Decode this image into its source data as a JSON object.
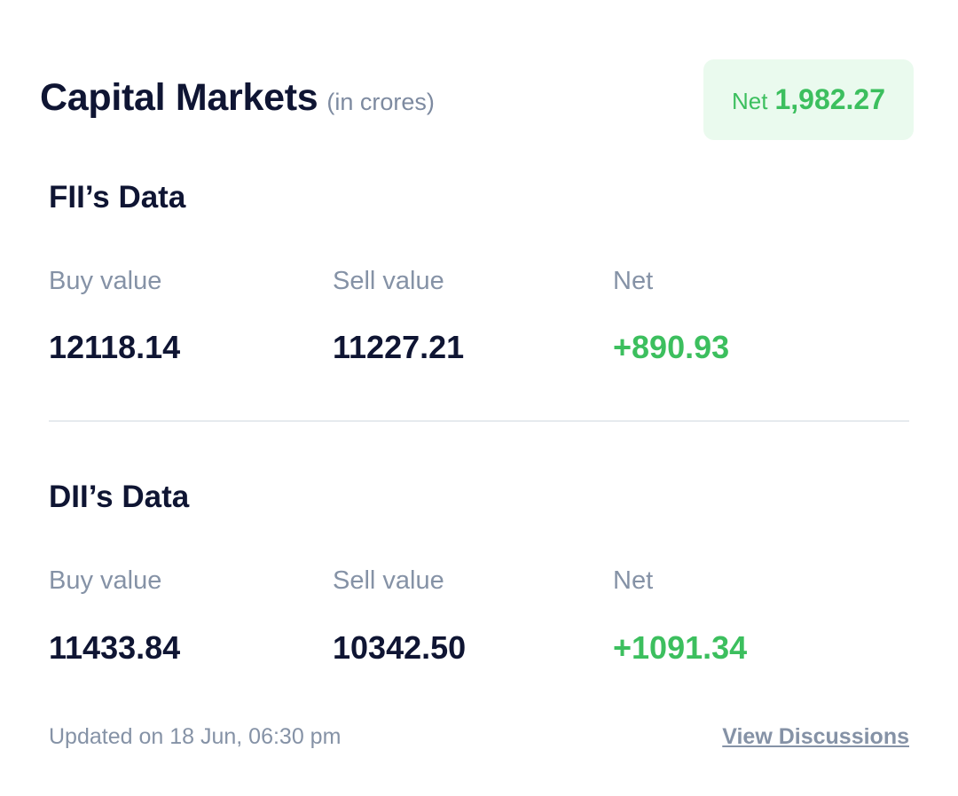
{
  "header": {
    "title": "Capital Markets",
    "unit": "(in crores)"
  },
  "badge": {
    "label": "Net",
    "value": "1,982.27"
  },
  "fii": {
    "heading": "FII’s Data",
    "buy_label": "Buy value",
    "sell_label": "Sell value",
    "net_label": "Net",
    "buy": "12118.14",
    "sell": "11227.21",
    "net": "+890.93"
  },
  "dii": {
    "heading": "DII’s Data",
    "buy_label": "Buy value",
    "sell_label": "Sell value",
    "net_label": "Net",
    "buy": "11433.84",
    "sell": "10342.50",
    "net": "+1091.34"
  },
  "footer": {
    "updated": "Updated on 18 Jun, 06:30 pm",
    "link": "View Discussions"
  },
  "colors": {
    "positive": "#3cbf5e",
    "badge_bg": "#eafaee",
    "text": "#0f1533",
    "muted": "#8592a6"
  }
}
